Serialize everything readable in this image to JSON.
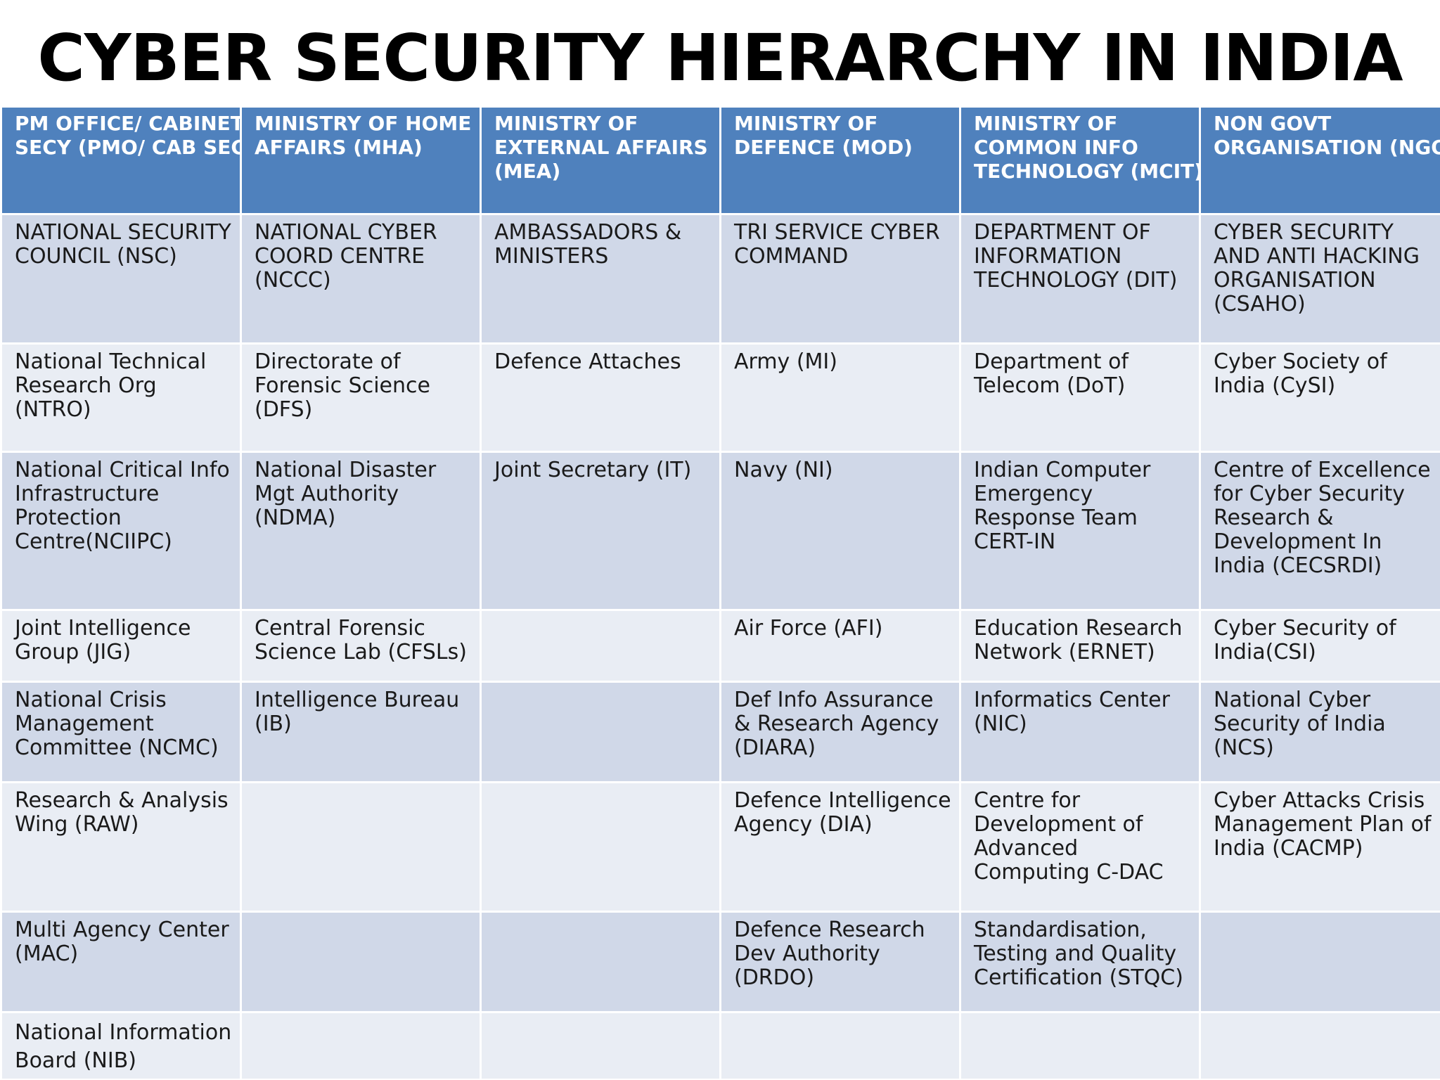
{
  "title": "CYBER SECURITY HIERARCHY IN INDIA",
  "colors": {
    "header_bg": "#4f81bd",
    "header_text": "#ffffff",
    "row_odd_bg": "#d0d8e8",
    "row_even_bg": "#e9edf4"
  },
  "table": {
    "headers": [
      [
        "PM OFFICE/ CABINET",
        "SECY (PMO/ CAB SEC)"
      ],
      [
        "MINISTRY OF HOME",
        "AFFAIRS (MHA)"
      ],
      [
        "MINISTRY OF",
        "EXTERNAL AFFAIRS",
        "(MEA)"
      ],
      [
        "MINISTRY OF",
        "DEFENCE (MOD)"
      ],
      [
        "MINISTRY OF",
        "COMMON INFO",
        "TECHNOLOGY (MCIT)"
      ],
      [
        "NON GOVT",
        "ORGANISATION (NGO)"
      ]
    ],
    "rows": [
      [
        "NATIONAL SECURITY COUNCIL (NSC)",
        "NATIONAL CYBER COORD CENTRE (NCCC)",
        "AMBASSADORS & MINISTERS",
        "TRI SERVICE CYBER COMMAND",
        "DEPARTMENT OF INFORMATION TECHNOLOGY (DIT)",
        "CYBER SECURITY AND ANTI HACKING ORGANISATION (CSAHO)"
      ],
      [
        "National Technical Research Org (NTRO)",
        "Directorate of Forensic Science (DFS)",
        "Defence Attaches",
        "Army (MI)",
        "Department of Telecom (DoT)",
        "Cyber Society of India (CySI)"
      ],
      [
        "National Critical Info Infrastructure Protection Centre(NCIIPC)",
        "National Disaster Mgt Authority (NDMA)",
        "Joint Secretary (IT)",
        "Navy (NI)",
        "Indian Computer Emergency Response Team CERT-IN",
        "Centre of Excellence for Cyber Security Research & Development In India (CECSRDI)"
      ],
      [
        "Joint Intelligence Group (JIG)",
        "Central Forensic Science Lab (CFSLs)",
        "",
        "Air Force (AFI)",
        "Education Research Network (ERNET)",
        "Cyber Security of India(CSI)"
      ],
      [
        "National Crisis Management Committee (NCMC)",
        "Intelligence Bureau (IB)",
        "",
        "Def Info Assurance & Research Agency (DIARA)",
        "Informatics Center (NIC)",
        "National Cyber Security of India (NCS)"
      ],
      [
        "Research & Analysis Wing (RAW)",
        "",
        "",
        "Defence Intelligence Agency (DIA)",
        "Centre for Development of Advanced Computing C-DAC",
        "Cyber Attacks Crisis Management Plan of India (CACMP)"
      ],
      [
        "Multi Agency Center (MAC)",
        "",
        "",
        "Defence Research Dev Authority (DRDO)",
        "Standardisation, Testing and Quality Certification (STQC)",
        ""
      ],
      [
        "National Information Board (NIB)",
        "",
        "",
        "",
        "",
        ""
      ]
    ]
  }
}
